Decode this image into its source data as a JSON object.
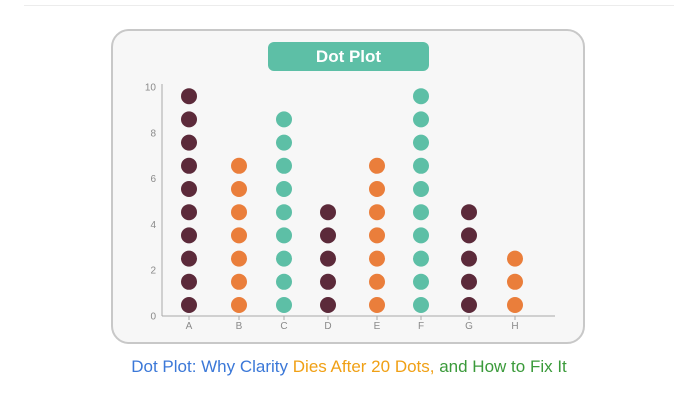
{
  "colors": {
    "maroon": "#5c2a3a",
    "orange": "#ea7e3b",
    "teal": "#5dbfa6",
    "title_bg": "#5dbfa6",
    "axis": "#a8a8a8"
  },
  "chart_data": {
    "type": "scatter",
    "subtype": "dot-plot",
    "title": "Dot Plot",
    "xlabel": "",
    "ylabel": "",
    "ylim": [
      0,
      10
    ],
    "y_ticks": [
      "0",
      "2",
      "4",
      "6",
      "8",
      "10"
    ],
    "categories": [
      "A",
      "B",
      "C",
      "D",
      "E",
      "F",
      "G",
      "H"
    ],
    "values": [
      10,
      7,
      9,
      5,
      7,
      10,
      5,
      3
    ],
    "dot_colors": [
      "maroon",
      "orange",
      "teal",
      "maroon",
      "orange",
      "teal",
      "maroon",
      "orange"
    ],
    "grid": false,
    "legend": "none"
  },
  "caption": {
    "part1": "Dot Plot: Why Clarity ",
    "part2": "Dies After 20 Dots,",
    "part3": " and How to Fix It"
  }
}
